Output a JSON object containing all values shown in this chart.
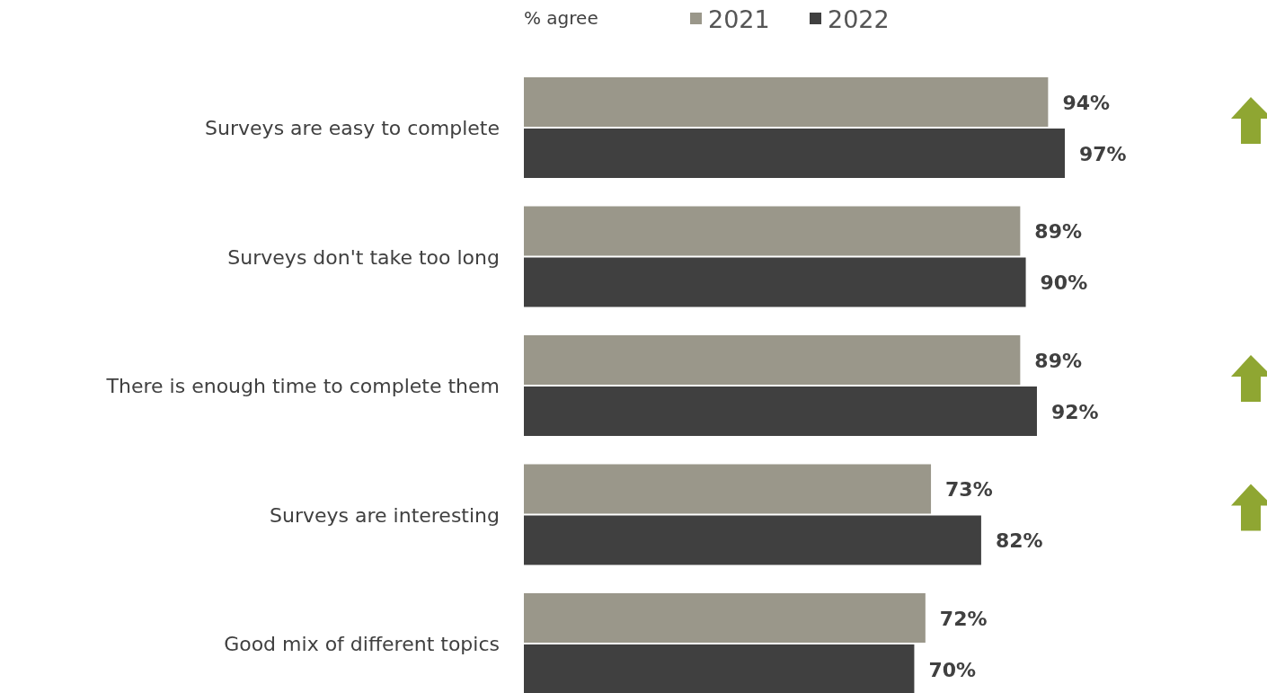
{
  "chart_data": {
    "type": "bar",
    "orientation": "horizontal",
    "legend_title": "% agree",
    "legend": "top",
    "categories": [
      "Surveys are easy to complete",
      "Surveys don't take too long",
      "There is enough time to complete them",
      "Surveys are interesting",
      "Good mix of different topics"
    ],
    "series": [
      {
        "name": "2021",
        "color": "#9a978a",
        "values": [
          94,
          89,
          89,
          73,
          72
        ],
        "value_labels": [
          "94%",
          "89%",
          "89%",
          "73%",
          "72%"
        ]
      },
      {
        "name": "2022",
        "color": "#404040",
        "values": [
          97,
          90,
          92,
          82,
          70
        ],
        "value_labels": [
          "97%",
          "90%",
          "92%",
          "82%",
          "70%"
        ]
      }
    ]
  }
}
